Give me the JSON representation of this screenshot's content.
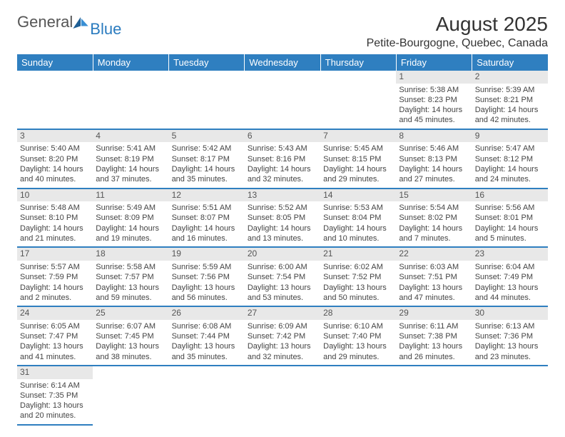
{
  "logo": {
    "text1": "General",
    "text2": "Blue"
  },
  "title": "August 2025",
  "location": "Petite-Bourgogne, Quebec, Canada",
  "colors": {
    "header_bg": "#2f7fc0",
    "header_text": "#ffffff",
    "daynum_bg": "#e8e8e8",
    "border": "#2f7fc0"
  },
  "weekdays": [
    "Sunday",
    "Monday",
    "Tuesday",
    "Wednesday",
    "Thursday",
    "Friday",
    "Saturday"
  ],
  "weeks": [
    [
      null,
      null,
      null,
      null,
      null,
      {
        "n": "1",
        "sr": "Sunrise: 5:38 AM",
        "ss": "Sunset: 8:23 PM",
        "d1": "Daylight: 14 hours",
        "d2": "and 45 minutes."
      },
      {
        "n": "2",
        "sr": "Sunrise: 5:39 AM",
        "ss": "Sunset: 8:21 PM",
        "d1": "Daylight: 14 hours",
        "d2": "and 42 minutes."
      }
    ],
    [
      {
        "n": "3",
        "sr": "Sunrise: 5:40 AM",
        "ss": "Sunset: 8:20 PM",
        "d1": "Daylight: 14 hours",
        "d2": "and 40 minutes."
      },
      {
        "n": "4",
        "sr": "Sunrise: 5:41 AM",
        "ss": "Sunset: 8:19 PM",
        "d1": "Daylight: 14 hours",
        "d2": "and 37 minutes."
      },
      {
        "n": "5",
        "sr": "Sunrise: 5:42 AM",
        "ss": "Sunset: 8:17 PM",
        "d1": "Daylight: 14 hours",
        "d2": "and 35 minutes."
      },
      {
        "n": "6",
        "sr": "Sunrise: 5:43 AM",
        "ss": "Sunset: 8:16 PM",
        "d1": "Daylight: 14 hours",
        "d2": "and 32 minutes."
      },
      {
        "n": "7",
        "sr": "Sunrise: 5:45 AM",
        "ss": "Sunset: 8:15 PM",
        "d1": "Daylight: 14 hours",
        "d2": "and 29 minutes."
      },
      {
        "n": "8",
        "sr": "Sunrise: 5:46 AM",
        "ss": "Sunset: 8:13 PM",
        "d1": "Daylight: 14 hours",
        "d2": "and 27 minutes."
      },
      {
        "n": "9",
        "sr": "Sunrise: 5:47 AM",
        "ss": "Sunset: 8:12 PM",
        "d1": "Daylight: 14 hours",
        "d2": "and 24 minutes."
      }
    ],
    [
      {
        "n": "10",
        "sr": "Sunrise: 5:48 AM",
        "ss": "Sunset: 8:10 PM",
        "d1": "Daylight: 14 hours",
        "d2": "and 21 minutes."
      },
      {
        "n": "11",
        "sr": "Sunrise: 5:49 AM",
        "ss": "Sunset: 8:09 PM",
        "d1": "Daylight: 14 hours",
        "d2": "and 19 minutes."
      },
      {
        "n": "12",
        "sr": "Sunrise: 5:51 AM",
        "ss": "Sunset: 8:07 PM",
        "d1": "Daylight: 14 hours",
        "d2": "and 16 minutes."
      },
      {
        "n": "13",
        "sr": "Sunrise: 5:52 AM",
        "ss": "Sunset: 8:05 PM",
        "d1": "Daylight: 14 hours",
        "d2": "and 13 minutes."
      },
      {
        "n": "14",
        "sr": "Sunrise: 5:53 AM",
        "ss": "Sunset: 8:04 PM",
        "d1": "Daylight: 14 hours",
        "d2": "and 10 minutes."
      },
      {
        "n": "15",
        "sr": "Sunrise: 5:54 AM",
        "ss": "Sunset: 8:02 PM",
        "d1": "Daylight: 14 hours",
        "d2": "and 7 minutes."
      },
      {
        "n": "16",
        "sr": "Sunrise: 5:56 AM",
        "ss": "Sunset: 8:01 PM",
        "d1": "Daylight: 14 hours",
        "d2": "and 5 minutes."
      }
    ],
    [
      {
        "n": "17",
        "sr": "Sunrise: 5:57 AM",
        "ss": "Sunset: 7:59 PM",
        "d1": "Daylight: 14 hours",
        "d2": "and 2 minutes."
      },
      {
        "n": "18",
        "sr": "Sunrise: 5:58 AM",
        "ss": "Sunset: 7:57 PM",
        "d1": "Daylight: 13 hours",
        "d2": "and 59 minutes."
      },
      {
        "n": "19",
        "sr": "Sunrise: 5:59 AM",
        "ss": "Sunset: 7:56 PM",
        "d1": "Daylight: 13 hours",
        "d2": "and 56 minutes."
      },
      {
        "n": "20",
        "sr": "Sunrise: 6:00 AM",
        "ss": "Sunset: 7:54 PM",
        "d1": "Daylight: 13 hours",
        "d2": "and 53 minutes."
      },
      {
        "n": "21",
        "sr": "Sunrise: 6:02 AM",
        "ss": "Sunset: 7:52 PM",
        "d1": "Daylight: 13 hours",
        "d2": "and 50 minutes."
      },
      {
        "n": "22",
        "sr": "Sunrise: 6:03 AM",
        "ss": "Sunset: 7:51 PM",
        "d1": "Daylight: 13 hours",
        "d2": "and 47 minutes."
      },
      {
        "n": "23",
        "sr": "Sunrise: 6:04 AM",
        "ss": "Sunset: 7:49 PM",
        "d1": "Daylight: 13 hours",
        "d2": "and 44 minutes."
      }
    ],
    [
      {
        "n": "24",
        "sr": "Sunrise: 6:05 AM",
        "ss": "Sunset: 7:47 PM",
        "d1": "Daylight: 13 hours",
        "d2": "and 41 minutes."
      },
      {
        "n": "25",
        "sr": "Sunrise: 6:07 AM",
        "ss": "Sunset: 7:45 PM",
        "d1": "Daylight: 13 hours",
        "d2": "and 38 minutes."
      },
      {
        "n": "26",
        "sr": "Sunrise: 6:08 AM",
        "ss": "Sunset: 7:44 PM",
        "d1": "Daylight: 13 hours",
        "d2": "and 35 minutes."
      },
      {
        "n": "27",
        "sr": "Sunrise: 6:09 AM",
        "ss": "Sunset: 7:42 PM",
        "d1": "Daylight: 13 hours",
        "d2": "and 32 minutes."
      },
      {
        "n": "28",
        "sr": "Sunrise: 6:10 AM",
        "ss": "Sunset: 7:40 PM",
        "d1": "Daylight: 13 hours",
        "d2": "and 29 minutes."
      },
      {
        "n": "29",
        "sr": "Sunrise: 6:11 AM",
        "ss": "Sunset: 7:38 PM",
        "d1": "Daylight: 13 hours",
        "d2": "and 26 minutes."
      },
      {
        "n": "30",
        "sr": "Sunrise: 6:13 AM",
        "ss": "Sunset: 7:36 PM",
        "d1": "Daylight: 13 hours",
        "d2": "and 23 minutes."
      }
    ],
    [
      {
        "n": "31",
        "sr": "Sunrise: 6:14 AM",
        "ss": "Sunset: 7:35 PM",
        "d1": "Daylight: 13 hours",
        "d2": "and 20 minutes."
      },
      null,
      null,
      null,
      null,
      null,
      null
    ]
  ]
}
